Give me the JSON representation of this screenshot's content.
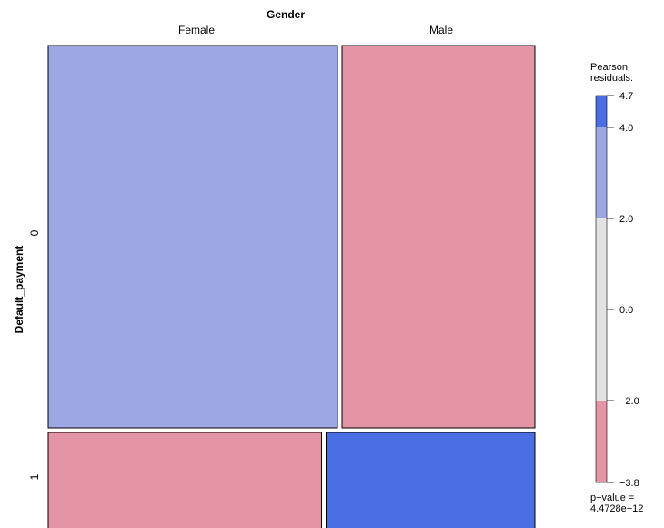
{
  "chart_data": {
    "type": "mosaic",
    "column_variable": "Gender",
    "row_variable": "Default_payment",
    "columns": [
      "Female",
      "Male"
    ],
    "rows": [
      "0",
      "1"
    ],
    "cells": [
      {
        "column": "Female",
        "row": "0",
        "column_share": 0.6,
        "row_share": 0.8,
        "residual": 3.0
      },
      {
        "column": "Male",
        "row": "0",
        "column_share": 0.4,
        "row_share": 0.75,
        "residual": -2.5
      },
      {
        "column": "Female",
        "row": "1",
        "column_share": 0.6,
        "row_share": 0.2,
        "residual": -2.5
      },
      {
        "column": "Male",
        "row": "1",
        "column_share": 0.4,
        "row_share": 0.25,
        "residual": 4.5
      }
    ],
    "legend": {
      "title_line1": "Pearson",
      "title_line2": "residuals:",
      "range": [
        -3.8,
        4.7
      ],
      "ticks": [
        "4.7",
        "4.0",
        "2.0",
        "0.0",
        "−2.0",
        "−3.8"
      ],
      "tick_values": [
        4.7,
        4.0,
        2.0,
        0.0,
        -2.0,
        -3.8
      ],
      "bands": [
        {
          "from": 4.0,
          "to": 4.7,
          "color": "#4a6fe3"
        },
        {
          "from": 2.0,
          "to": 4.0,
          "color": "#9da7e3"
        },
        {
          "from": -2.0,
          "to": 2.0,
          "color": "#e2e2e2"
        },
        {
          "from": -3.8,
          "to": -2.0,
          "color": "#e495a5"
        }
      ],
      "placement": "right"
    },
    "p_value_label": "p−value =",
    "p_value": "4.4728e−12"
  }
}
